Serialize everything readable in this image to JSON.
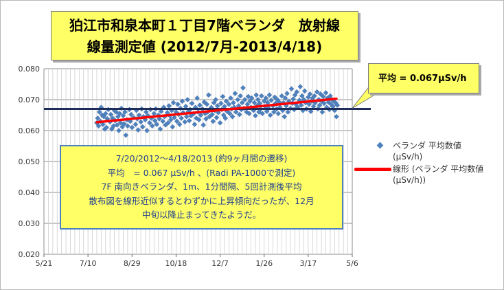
{
  "title": {
    "line1": "狛江市和泉本町１丁目7階ベランダ　放射線",
    "line2": "線量測定値 (2012/7月-2013/4/18)"
  },
  "average_callout": "平均 = 0.067µSv/h",
  "note": {
    "lines": [
      "7/20/2012～4/18/2013 (約9ヶ月間の遷移)",
      "平均　= 0.067 µSv/h 、(Radi PA-1000で測定)",
      "7F 南向きベランダ、1m、1分間隔、5回計測後平均",
      "散布図を線形近似するとわずかに上昇傾向だったが、12月",
      "中旬以降止まってきたようだ。"
    ]
  },
  "legend": {
    "series": {
      "label": "ベランダ 平均数値",
      "unit": "(µSv/h)"
    },
    "trend": {
      "label": "線形 (ベランダ 平均数値",
      "unit": "(µSv/h))"
    }
  },
  "colors": {
    "series": "#4f81bd",
    "trend": "#ff0000",
    "average": "#1f2d5a",
    "box": "#ffff66"
  },
  "chart_data": {
    "type": "scatter",
    "title": "狛江市和泉本町１丁目7階ベランダ　放射線 線量測定値 (2012/7月-2013/4/18)",
    "xlabel": "",
    "ylabel": "",
    "xlim_days_since_2012_05_21": [
      0,
      350
    ],
    "ylim": [
      0.02,
      0.08
    ],
    "x_ticks": [
      {
        "label": "5/21",
        "day": 0
      },
      {
        "label": "7/10",
        "day": 50
      },
      {
        "label": "8/29",
        "day": 100
      },
      {
        "label": "10/18",
        "day": 150
      },
      {
        "label": "12/7",
        "day": 200
      },
      {
        "label": "1/26",
        "day": 250
      },
      {
        "label": "3/17",
        "day": 300
      },
      {
        "label": "5/6",
        "day": 350
      }
    ],
    "y_ticks": [
      0.02,
      0.03,
      0.04,
      0.05,
      0.06,
      0.07,
      0.08
    ],
    "y_tick_labels": [
      "0.020",
      "0.030",
      "0.040",
      "0.050",
      "0.060",
      "0.070",
      "0.080"
    ],
    "grid": true,
    "average_line": 0.067,
    "trend_line": {
      "start": {
        "day": 60,
        "value": 0.0627
      },
      "end": {
        "day": 332,
        "value": 0.0703
      }
    },
    "series": [
      {
        "name": "ベランダ 平均数値 (µSv/h)",
        "points": [
          [
            60,
            0.0625
          ],
          [
            61,
            0.064
          ],
          [
            62,
            0.0615
          ],
          [
            63,
            0.066
          ],
          [
            64,
            0.063
          ],
          [
            65,
            0.0675
          ],
          [
            66,
            0.065
          ],
          [
            67,
            0.062
          ],
          [
            68,
            0.0645
          ],
          [
            69,
            0.0605
          ],
          [
            70,
            0.0655
          ],
          [
            71,
            0.061
          ],
          [
            72,
            0.0638
          ],
          [
            73,
            0.0668
          ],
          [
            75,
            0.0628
          ],
          [
            76,
            0.0652
          ],
          [
            77,
            0.0605
          ],
          [
            78,
            0.064
          ],
          [
            79,
            0.0615
          ],
          [
            80,
            0.0665
          ],
          [
            81,
            0.0632
          ],
          [
            82,
            0.066
          ],
          [
            83,
            0.0618
          ],
          [
            84,
            0.0645
          ],
          [
            85,
            0.06
          ],
          [
            86,
            0.0655
          ],
          [
            87,
            0.0625
          ],
          [
            88,
            0.0672
          ],
          [
            89,
            0.0612
          ],
          [
            90,
            0.0648
          ],
          [
            91,
            0.0622
          ],
          [
            92,
            0.066
          ],
          [
            93,
            0.0585
          ],
          [
            94,
            0.0635
          ],
          [
            95,
            0.0615
          ],
          [
            97,
            0.0668
          ],
          [
            98,
            0.063
          ],
          [
            99,
            0.0652
          ],
          [
            100,
            0.061
          ],
          [
            102,
            0.0642
          ],
          [
            104,
            0.062
          ],
          [
            105,
            0.0665
          ],
          [
            106,
            0.0638
          ],
          [
            107,
            0.0602
          ],
          [
            108,
            0.065
          ],
          [
            110,
            0.0628
          ],
          [
            111,
            0.067
          ],
          [
            112,
            0.0612
          ],
          [
            113,
            0.0645
          ],
          [
            115,
            0.0635
          ],
          [
            116,
            0.066
          ],
          [
            117,
            0.06
          ],
          [
            118,
            0.0648
          ],
          [
            120,
            0.0625
          ],
          [
            121,
            0.0668
          ],
          [
            122,
            0.064
          ],
          [
            123,
            0.0615
          ],
          [
            125,
            0.0655
          ],
          [
            126,
            0.0632
          ],
          [
            127,
            0.067
          ],
          [
            128,
            0.062
          ],
          [
            130,
            0.065
          ],
          [
            131,
            0.0638
          ],
          [
            132,
            0.0605
          ],
          [
            133,
            0.0662
          ],
          [
            135,
            0.063
          ],
          [
            136,
            0.0675
          ],
          [
            137,
            0.0645
          ],
          [
            138,
            0.0618
          ],
          [
            140,
            0.0658
          ],
          [
            141,
            0.0625
          ],
          [
            142,
            0.068
          ],
          [
            143,
            0.0648
          ],
          [
            144,
            0.0635
          ],
          [
            145,
            0.0665
          ],
          [
            146,
            0.0612
          ],
          [
            147,
            0.069
          ],
          [
            148,
            0.0642
          ],
          [
            150,
            0.066
          ],
          [
            151,
            0.063
          ],
          [
            152,
            0.0685
          ],
          [
            153,
            0.0652
          ],
          [
            154,
            0.062
          ],
          [
            155,
            0.0672
          ],
          [
            156,
            0.064
          ],
          [
            157,
            0.0695
          ],
          [
            158,
            0.0658
          ],
          [
            160,
            0.0628
          ],
          [
            161,
            0.0678
          ],
          [
            162,
            0.0645
          ],
          [
            163,
            0.07
          ],
          [
            164,
            0.0662
          ],
          [
            165,
            0.0632
          ],
          [
            166,
            0.0668
          ],
          [
            167,
            0.0648
          ],
          [
            168,
            0.0688
          ],
          [
            170,
            0.0655
          ],
          [
            171,
            0.062
          ],
          [
            172,
            0.0675
          ],
          [
            173,
            0.064
          ],
          [
            174,
            0.0705
          ],
          [
            175,
            0.066
          ],
          [
            176,
            0.0635
          ],
          [
            177,
            0.0682
          ],
          [
            178,
            0.065
          ],
          [
            180,
            0.067
          ],
          [
            181,
            0.0618
          ],
          [
            182,
            0.0692
          ],
          [
            183,
            0.0655
          ],
          [
            184,
            0.0638
          ],
          [
            185,
            0.0685
          ],
          [
            186,
            0.066
          ],
          [
            187,
            0.0715
          ],
          [
            188,
            0.0645
          ],
          [
            190,
            0.0675
          ],
          [
            191,
            0.0652
          ],
          [
            192,
            0.063
          ],
          [
            193,
            0.069
          ],
          [
            194,
            0.0665
          ],
          [
            195,
            0.07
          ],
          [
            196,
            0.0642
          ],
          [
            197,
            0.068
          ],
          [
            198,
            0.0658
          ],
          [
            200,
            0.0625
          ],
          [
            201,
            0.0688
          ],
          [
            202,
            0.0668
          ],
          [
            203,
            0.071
          ],
          [
            204,
            0.065
          ],
          [
            205,
            0.0678
          ],
          [
            206,
            0.064
          ],
          [
            207,
            0.0695
          ],
          [
            208,
            0.0662
          ],
          [
            210,
            0.0685
          ],
          [
            211,
            0.0655
          ],
          [
            212,
            0.0705
          ],
          [
            213,
            0.067
          ],
          [
            214,
            0.0645
          ],
          [
            215,
            0.069
          ],
          [
            216,
            0.0675
          ],
          [
            217,
            0.072
          ],
          [
            218,
            0.066
          ],
          [
            220,
            0.07
          ],
          [
            221,
            0.068
          ],
          [
            222,
            0.0652
          ],
          [
            223,
            0.0712
          ],
          [
            224,
            0.0668
          ],
          [
            225,
            0.069
          ],
          [
            226,
            0.0738
          ],
          [
            227,
            0.0672
          ],
          [
            228,
            0.07
          ],
          [
            230,
            0.066
          ],
          [
            231,
            0.0685
          ],
          [
            232,
            0.071
          ],
          [
            233,
            0.0655
          ],
          [
            234,
            0.0695
          ],
          [
            235,
            0.0675
          ],
          [
            236,
            0.0705
          ],
          [
            238,
            0.0665
          ],
          [
            239,
            0.069
          ],
          [
            240,
            0.0648
          ],
          [
            241,
            0.0715
          ],
          [
            242,
            0.068
          ],
          [
            243,
            0.07
          ],
          [
            244,
            0.066
          ],
          [
            245,
            0.0688
          ],
          [
            246,
            0.067
          ],
          [
            247,
            0.0712
          ],
          [
            248,
            0.0655
          ],
          [
            250,
            0.0695
          ],
          [
            251,
            0.0678
          ],
          [
            252,
            0.0705
          ],
          [
            253,
            0.0662
          ],
          [
            254,
            0.069
          ],
          [
            255,
            0.0672
          ],
          [
            256,
            0.0715
          ],
          [
            257,
            0.065
          ],
          [
            258,
            0.0698
          ],
          [
            260,
            0.068
          ],
          [
            261,
            0.066
          ],
          [
            262,
            0.0708
          ],
          [
            263,
            0.0688
          ],
          [
            264,
            0.067
          ],
          [
            265,
            0.07
          ],
          [
            266,
            0.0655
          ],
          [
            267,
            0.0692
          ],
          [
            268,
            0.0675
          ],
          [
            270,
            0.0712
          ],
          [
            271,
            0.0665
          ],
          [
            272,
            0.069
          ],
          [
            273,
            0.0645
          ],
          [
            274,
            0.0705
          ],
          [
            275,
            0.068
          ],
          [
            276,
            0.072
          ],
          [
            277,
            0.066
          ],
          [
            278,
            0.0695
          ],
          [
            280,
            0.0672
          ],
          [
            281,
            0.0735
          ],
          [
            282,
            0.0688
          ],
          [
            283,
            0.0702
          ],
          [
            284,
            0.0668
          ],
          [
            285,
            0.0715
          ],
          [
            286,
            0.0685
          ],
          [
            287,
            0.0725
          ],
          [
            288,
            0.0675
          ],
          [
            290,
            0.0698
          ],
          [
            291,
            0.0742
          ],
          [
            292,
            0.0682
          ],
          [
            293,
            0.0712
          ],
          [
            294,
            0.0665
          ],
          [
            295,
            0.07
          ],
          [
            296,
            0.0728
          ],
          [
            297,
            0.069
          ],
          [
            298,
            0.067
          ],
          [
            300,
            0.0708
          ],
          [
            301,
            0.0685
          ],
          [
            302,
            0.0718
          ],
          [
            303,
            0.0662
          ],
          [
            304,
            0.0695
          ],
          [
            305,
            0.0705
          ],
          [
            306,
            0.0678
          ],
          [
            307,
            0.0712
          ],
          [
            308,
            0.069
          ],
          [
            310,
            0.0725
          ],
          [
            311,
            0.067
          ],
          [
            312,
            0.07
          ],
          [
            313,
            0.0682
          ],
          [
            314,
            0.0718
          ],
          [
            315,
            0.0695
          ],
          [
            316,
            0.066
          ],
          [
            317,
            0.071
          ],
          [
            318,
            0.0688
          ],
          [
            320,
            0.0722
          ],
          [
            321,
            0.0675
          ],
          [
            322,
            0.0705
          ],
          [
            323,
            0.0692
          ],
          [
            324,
            0.0668
          ],
          [
            325,
            0.0712
          ],
          [
            326,
            0.0685
          ],
          [
            327,
            0.07
          ],
          [
            328,
            0.0678
          ],
          [
            329,
            0.0695
          ],
          [
            330,
            0.0665
          ],
          [
            331,
            0.069
          ],
          [
            332,
            0.0645
          ],
          [
            333,
            0.0682
          ]
        ]
      }
    ]
  }
}
